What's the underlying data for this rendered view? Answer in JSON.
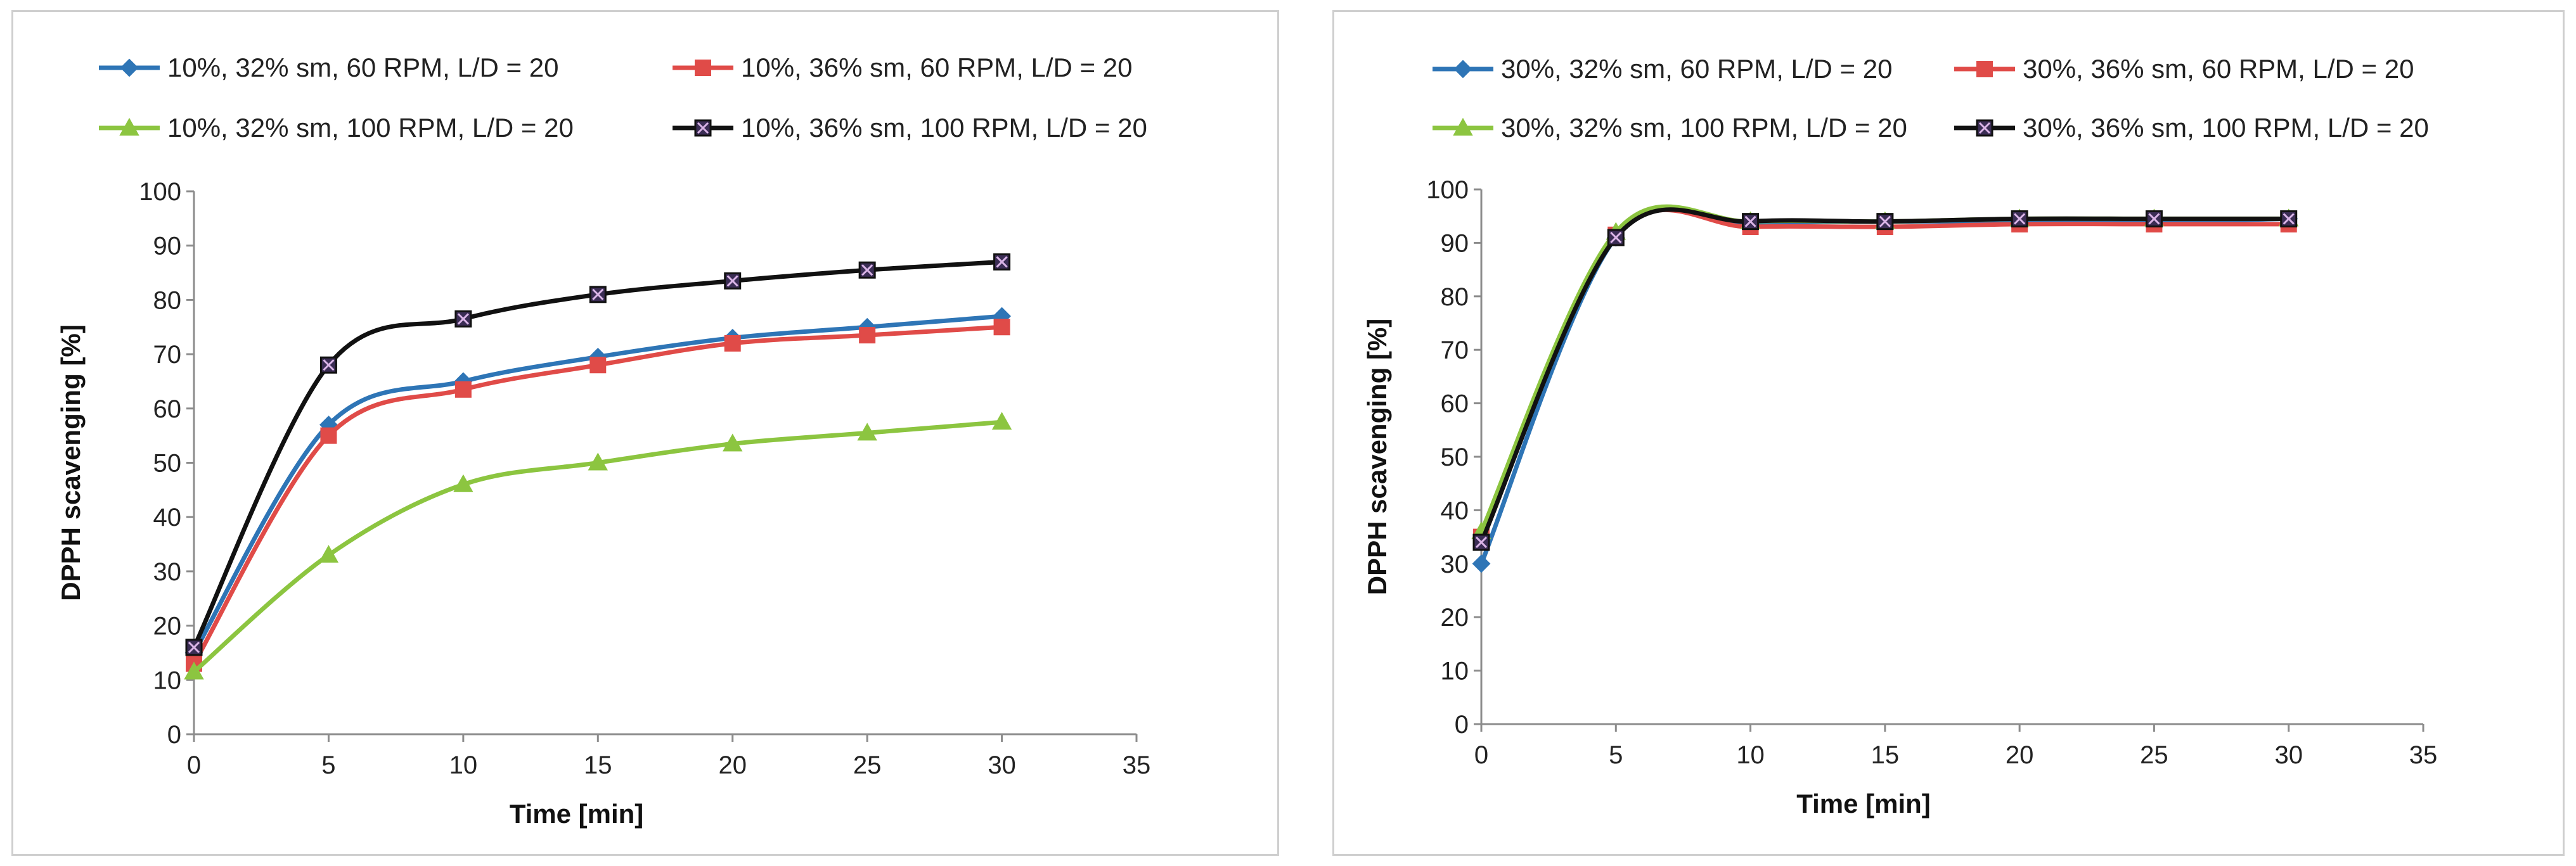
{
  "chart_data": [
    {
      "type": "line",
      "xlabel": "Time [min]",
      "ylabel": "DPPH scavenging [%]",
      "xlim": [
        0,
        35
      ],
      "ylim": [
        0,
        100
      ],
      "xticks": [
        0,
        5,
        10,
        15,
        20,
        25,
        30,
        35
      ],
      "yticks": [
        0,
        10,
        20,
        30,
        40,
        50,
        60,
        70,
        80,
        90,
        100
      ],
      "grid": false,
      "legend": "top",
      "x": [
        0,
        5,
        10,
        15,
        20,
        25,
        30
      ],
      "series": [
        {
          "name": "10%, 32% sm, 60 RPM, L/D = 20",
          "color": "#2e75b6",
          "marker": "diamond",
          "values": [
            15,
            57,
            65,
            69.5,
            73,
            75,
            77
          ]
        },
        {
          "name": "10%, 36% sm, 60 RPM, L/D = 20",
          "color": "#e04b48",
          "marker": "square",
          "values": [
            13,
            55,
            63.5,
            68,
            72,
            73.5,
            75
          ]
        },
        {
          "name": "10%, 32% sm, 100 RPM, L/D = 20",
          "color": "#8cc540",
          "marker": "triangle",
          "values": [
            11.5,
            33,
            46,
            50,
            53.5,
            55.5,
            57.5
          ]
        },
        {
          "name": "10%, 36% sm, 100 RPM, L/D = 20",
          "color": "#111111",
          "marker": "xsquare",
          "values": [
            16,
            68,
            76.5,
            81,
            83.5,
            85.5,
            87
          ]
        }
      ]
    },
    {
      "type": "line",
      "xlabel": "Time [min]",
      "ylabel": "DPPH scavenging [%]",
      "xlim": [
        0,
        35
      ],
      "ylim": [
        0,
        100
      ],
      "xticks": [
        0,
        5,
        10,
        15,
        20,
        25,
        30,
        35
      ],
      "yticks": [
        0,
        10,
        20,
        30,
        40,
        50,
        60,
        70,
        80,
        90,
        100
      ],
      "grid": false,
      "legend": "top",
      "x": [
        0,
        5,
        10,
        15,
        20,
        25,
        30
      ],
      "series": [
        {
          "name": "30%, 32% sm, 60 RPM, L/D = 20",
          "color": "#2e75b6",
          "marker": "diamond",
          "values": [
            30,
            91,
            93.5,
            94,
            94,
            94,
            94.5
          ]
        },
        {
          "name": "30%, 36% sm, 60 RPM, L/D = 20",
          "color": "#e04b48",
          "marker": "square",
          "values": [
            35,
            91.5,
            93,
            93,
            93.5,
            93.5,
            93.5
          ]
        },
        {
          "name": "30%, 32% sm, 100 RPM, L/D = 20",
          "color": "#8cc540",
          "marker": "triangle",
          "values": [
            36,
            92,
            94,
            94,
            94.5,
            94.5,
            94.5
          ]
        },
        {
          "name": "30%, 36% sm, 100 RPM, L/D = 20",
          "color": "#111111",
          "marker": "xsquare",
          "values": [
            34,
            91,
            94,
            94,
            94.5,
            94.5,
            94.5
          ]
        }
      ]
    }
  ]
}
